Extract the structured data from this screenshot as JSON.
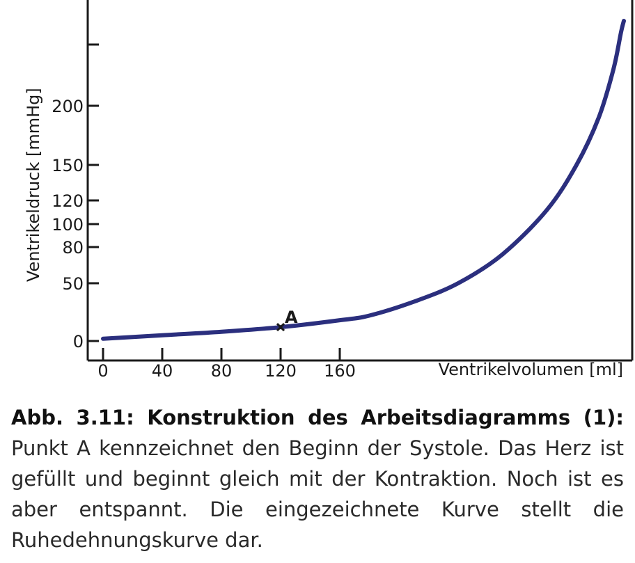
{
  "caption": {
    "title": "Abb. 3.11: Konstruktion des Arbeitsdiagramms (1):",
    "body": "Punkt A kennzeichnet den Beginn der Systole. Das Herz ist gefüllt und beginnt gleich mit der Kontraktion. Noch ist es aber entspannt. Die eingezeichnete Kurve stellt die Ruhedehnungskurve dar."
  },
  "chart_data": {
    "type": "line",
    "title": "",
    "xlabel": "Ventrikelvolumen [ml]",
    "ylabel": "Ventrikeldruck [mmHg]",
    "xlim": [
      0,
      360
    ],
    "ylim": [
      0,
      290
    ],
    "x_ticks": [
      0,
      40,
      80,
      120,
      160
    ],
    "y_ticks": [
      0,
      50,
      80,
      100,
      120,
      150,
      200
    ],
    "y_unlabeled_ticks": [
      250
    ],
    "grid": false,
    "series": [
      {
        "name": "",
        "color": "#2b2f7e",
        "points": [
          [
            0,
            2
          ],
          [
            40,
            5
          ],
          [
            80,
            8
          ],
          [
            120,
            12
          ],
          [
            160,
            18
          ],
          [
            180,
            22
          ],
          [
            210,
            34
          ],
          [
            240,
            50
          ],
          [
            270,
            74
          ],
          [
            300,
            112
          ],
          [
            320,
            150
          ],
          [
            335,
            190
          ],
          [
            345,
            230
          ],
          [
            350,
            260
          ],
          [
            352,
            270
          ]
        ]
      }
    ],
    "annotations": [
      {
        "label": "A",
        "x": 120,
        "y": 12
      }
    ]
  }
}
